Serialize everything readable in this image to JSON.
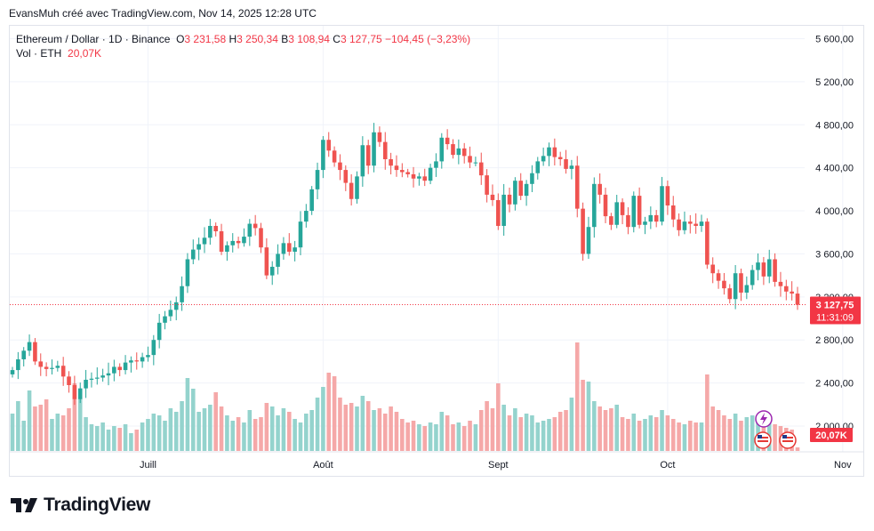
{
  "credit": "EvansMuh créé avec TradingView.com, Nov 14, 2025 12:28 UTC",
  "legend": {
    "symbol": "Ethereum / Dollar · 1D · Binance",
    "open_label": "O",
    "open": "3 231,58",
    "high_label": "H",
    "high": "3 250,34",
    "low_label": "B",
    "low": "3 108,94",
    "close_label": "C",
    "close": "3 127,75",
    "change": "−104,45 (−3,23%)",
    "vol_label": "Vol · ETH",
    "vol": "20,07K"
  },
  "price_tag": {
    "price": "3 127,75",
    "countdown": "11:31:09"
  },
  "vol_tag": "20,07K",
  "brand": "TradingView",
  "colors": {
    "up": "#26a69a",
    "down": "#ef5350",
    "up_vol": "#94d3cd",
    "down_vol": "#f5a8a8"
  },
  "chart_data": {
    "type": "candlestick",
    "y_ticks": [
      "5 600,00",
      "5 200,00",
      "4 800,00",
      "4 400,00",
      "4 000,00",
      "3 600,00",
      "3 200,00",
      "2 800,00",
      "2 400,00",
      "2 000,00"
    ],
    "y_tick_values": [
      5600,
      5200,
      4800,
      4400,
      4000,
      3600,
      3200,
      2800,
      2400,
      2000
    ],
    "x_ticks": [
      {
        "label": "Juill",
        "index": 24
      },
      {
        "label": "Août",
        "index": 55
      },
      {
        "label": "Sept",
        "index": 86
      },
      {
        "label": "Oct",
        "index": 116
      },
      {
        "label": "Nov",
        "index": 147
      }
    ],
    "ylim": [
      1760,
      5720
    ],
    "close_trend": [
      2520,
      2620,
      2700,
      2780,
      2600,
      2550,
      2530,
      2540,
      2560,
      2460,
      2380,
      2250,
      2350,
      2430,
      2440,
      2450,
      2470,
      2490,
      2550,
      2520,
      2590,
      2610,
      2600,
      2640,
      2660,
      2800,
      2960,
      3020,
      3080,
      3150,
      3300,
      3550,
      3640,
      3690,
      3750,
      3860,
      3810,
      3620,
      3680,
      3720,
      3700,
      3760,
      3880,
      3840,
      3660,
      3400,
      3480,
      3600,
      3700,
      3620,
      3660,
      3900,
      4000,
      4200,
      4380,
      4660,
      4560,
      4450,
      4380,
      4260,
      4110,
      4320,
      4610,
      4420,
      4730,
      4640,
      4480,
      4420,
      4380,
      4360,
      4340,
      4300,
      4320,
      4280,
      4400,
      4460,
      4680,
      4620,
      4520,
      4580,
      4510,
      4450,
      4450,
      4330,
      4150,
      4100,
      3860,
      4150,
      4060,
      4280,
      4140,
      4250,
      4350,
      4460,
      4510,
      4590,
      4500,
      4480,
      4390,
      4420,
      4020,
      3600,
      3850,
      4250,
      4150,
      3950,
      3870,
      4080,
      3960,
      3850,
      4140,
      3870,
      3900,
      3960,
      3900,
      4230,
      4050,
      3920,
      3820,
      3900,
      3880,
      3860,
      3900,
      3500,
      3420,
      3350,
      3280,
      3180,
      3420,
      3240,
      3310,
      3450,
      3520,
      3390,
      3550,
      3340,
      3300,
      3250,
      3231,
      3127
    ],
    "volume_k": [
      210,
      280,
      170,
      340,
      250,
      260,
      290,
      180,
      210,
      200,
      240,
      380,
      300,
      190,
      150,
      140,
      160,
      120,
      140,
      130,
      150,
      100,
      120,
      160,
      180,
      210,
      200,
      170,
      240,
      220,
      280,
      410,
      350,
      220,
      240,
      260,
      330,
      250,
      200,
      170,
      190,
      160,
      230,
      180,
      190,
      270,
      250,
      200,
      240,
      220,
      180,
      160,
      210,
      230,
      300,
      360,
      440,
      420,
      300,
      260,
      270,
      250,
      310,
      280,
      230,
      240,
      210,
      250,
      220,
      180,
      160,
      170,
      150,
      140,
      160,
      150,
      220,
      200,
      150,
      160,
      140,
      170,
      150,
      230,
      280,
      240,
      380,
      260,
      200,
      240,
      190,
      210,
      200,
      160,
      170,
      180,
      190,
      220,
      230,
      300,
      610,
      400,
      390,
      280,
      250,
      230,
      240,
      260,
      190,
      180,
      210,
      170,
      180,
      200,
      190,
      230,
      200,
      180,
      160,
      150,
      170,
      160,
      160,
      430,
      250,
      230,
      200,
      180,
      210,
      170,
      190,
      200,
      180,
      160,
      170,
      150,
      140,
      130,
      120,
      20
    ]
  }
}
